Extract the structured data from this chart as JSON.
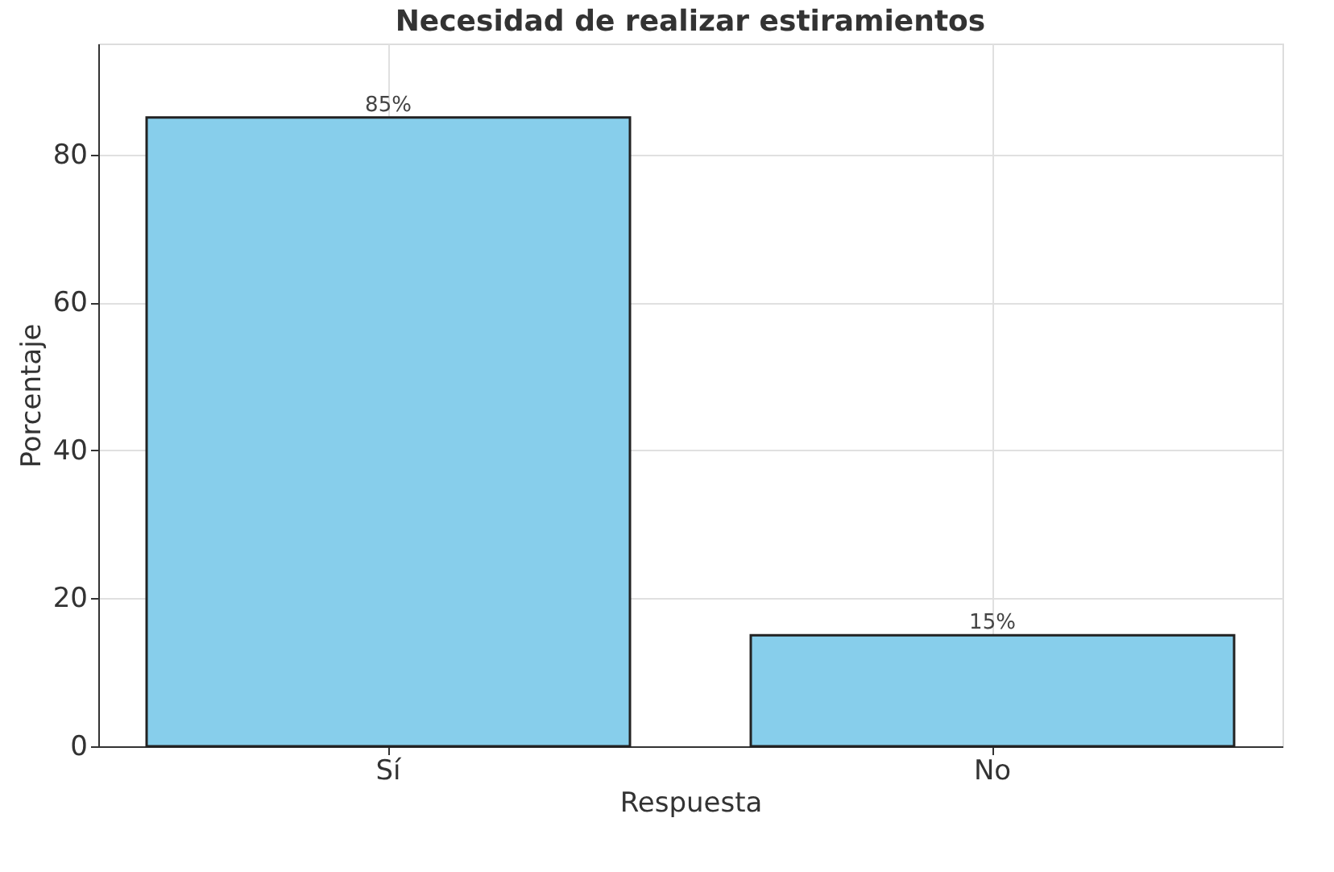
{
  "chart_data": {
    "type": "bar",
    "title": "Necesidad de realizar estiramientos",
    "xlabel": "Respuesta",
    "ylabel": "Porcentaje",
    "categories": [
      "Sí",
      "No"
    ],
    "values": [
      85,
      15
    ],
    "color": "#87ceeb",
    "value_labels": [
      "85%",
      "15%"
    ],
    "ylim": [
      0,
      95
    ],
    "yticks": [
      0,
      20,
      40,
      60,
      80
    ],
    "grid": true
  }
}
